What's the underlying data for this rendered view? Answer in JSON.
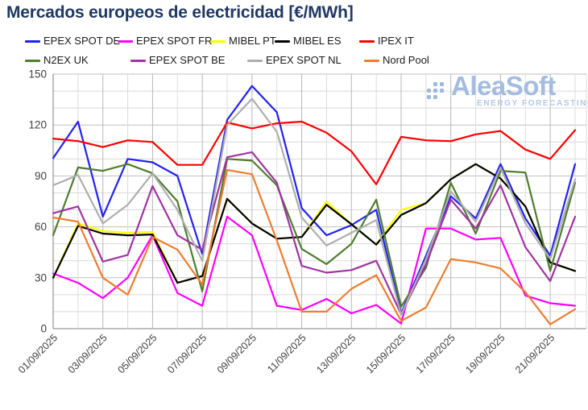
{
  "title": "Mercados europeos de electricidad [€/MWh]",
  "watermark": {
    "brand": "AleaSoft",
    "tagline": "ENERGY FORECASTING"
  },
  "axes": {
    "y_tick_labels": [
      "0",
      "30",
      "60",
      "90",
      "120",
      "150"
    ]
  },
  "chart_data": {
    "type": "line",
    "title": "Mercados europeos de electricidad [€/MWh]",
    "xlabel": "",
    "ylabel": "",
    "ylim": [
      0,
      150
    ],
    "ytick_step": 30,
    "grid_step": 10,
    "grid": true,
    "legend_position": "top",
    "xtick_every": 2,
    "dates": [
      "01/09/2025",
      "02/09/2025",
      "03/09/2025",
      "04/09/2025",
      "05/09/2025",
      "06/09/2025",
      "07/09/2025",
      "08/09/2025",
      "09/09/2025",
      "10/09/2025",
      "11/09/2025",
      "12/09/2025",
      "13/09/2025",
      "14/09/2025",
      "15/09/2025",
      "16/09/2025",
      "17/09/2025",
      "18/09/2025",
      "19/09/2025",
      "20/09/2025",
      "21/09/2025",
      "22/09/2025"
    ],
    "series": [
      {
        "name": "EPEX SPOT DE",
        "color": "#2121f3",
        "values": [
          100.5,
          122,
          66,
          100,
          98,
          90,
          44,
          123,
          143,
          127.5,
          71,
          55,
          61,
          70,
          9,
          43,
          78,
          65,
          97,
          65,
          43,
          97
        ]
      },
      {
        "name": "EPEX SPOT FR",
        "color": "#ff00ff",
        "values": [
          32.5,
          27,
          18,
          30,
          55,
          21,
          13.5,
          66,
          55,
          13.5,
          11,
          17.5,
          9,
          14,
          3,
          59,
          59,
          52.5,
          53.5,
          19.5,
          15,
          13.5
        ]
      },
      {
        "name": "MIBEL PT",
        "color": "#ffff00",
        "values": [
          30,
          62,
          57.5,
          56.5,
          57,
          27,
          31,
          76.5,
          62,
          53,
          54,
          75,
          61.5,
          49.5,
          70,
          74,
          88,
          97,
          88.5,
          72,
          39,
          34
        ]
      },
      {
        "name": "MIBEL ES",
        "color": "#000000",
        "values": [
          30,
          60.5,
          56,
          55,
          55.5,
          27,
          31,
          76.5,
          62,
          53,
          54,
          73,
          61.5,
          49.5,
          67,
          74,
          88,
          97,
          88.5,
          72,
          39,
          34
        ]
      },
      {
        "name": "IPEX IT",
        "color": "#fe0000",
        "values": [
          112,
          110.5,
          107,
          111,
          110,
          96.5,
          96.5,
          121.5,
          118,
          121,
          122,
          115.5,
          104.5,
          85,
          113,
          111,
          110.5,
          114.5,
          116.5,
          105.5,
          100,
          117
        ]
      },
      {
        "name": "N2EX UK",
        "color": "#4e7d2d",
        "values": [
          55,
          95,
          93,
          97,
          91.5,
          75,
          22,
          100,
          99,
          84.5,
          47,
          38,
          50,
          76,
          13,
          36,
          86,
          56,
          93,
          92,
          34,
          86
        ]
      },
      {
        "name": "EPEX SPOT BE",
        "color": "#a033a0",
        "values": [
          68,
          72,
          39.5,
          43.5,
          84,
          55,
          46.5,
          101,
          104,
          86,
          37,
          33,
          34.5,
          40,
          8.5,
          38,
          76,
          59,
          84.5,
          48,
          28,
          66
        ]
      },
      {
        "name": "EPEX SPOT NL",
        "color": "#aeaeae",
        "values": [
          84.5,
          90.5,
          62,
          73,
          91.5,
          70,
          40,
          120,
          135.5,
          116,
          65.5,
          49,
          56.5,
          64,
          8,
          41,
          81,
          63,
          95,
          62,
          41,
          88
        ]
      },
      {
        "name": "Nord Pool",
        "color": "#ed7d31",
        "values": [
          65.5,
          63,
          30,
          20,
          54,
          46.5,
          26,
          93.5,
          91,
          52,
          10,
          10,
          23.5,
          31.5,
          4.5,
          12.5,
          41,
          39,
          35.5,
          21.5,
          2.5,
          11.5
        ]
      }
    ],
    "legend_rows": [
      [
        0,
        1,
        2,
        3,
        4
      ],
      [
        5,
        6,
        7,
        8
      ]
    ]
  }
}
